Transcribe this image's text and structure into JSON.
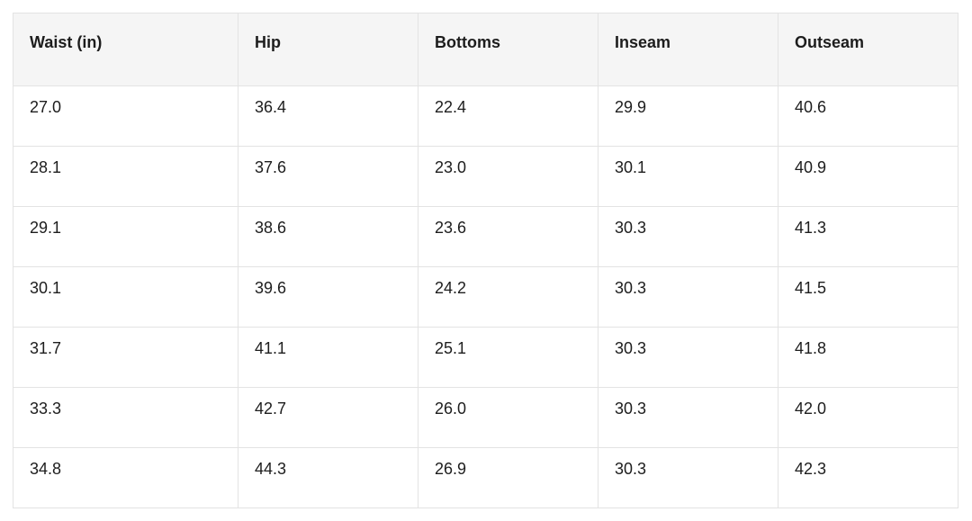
{
  "chart_data": {
    "type": "table",
    "columns": [
      "Waist (in)",
      "Hip",
      "Bottoms",
      "Inseam",
      "Outseam"
    ],
    "rows": [
      [
        "27.0",
        "36.4",
        "22.4",
        "29.9",
        "40.6"
      ],
      [
        "28.1",
        "37.6",
        "23.0",
        "30.1",
        "40.9"
      ],
      [
        "29.1",
        "38.6",
        "23.6",
        "30.3",
        "41.3"
      ],
      [
        "30.1",
        "39.6",
        "24.2",
        "30.3",
        "41.5"
      ],
      [
        "31.7",
        "41.1",
        "25.1",
        "30.3",
        "41.8"
      ],
      [
        "33.3",
        "42.7",
        "26.0",
        "30.3",
        "42.0"
      ],
      [
        "34.8",
        "44.3",
        "26.9",
        "30.3",
        "42.3"
      ]
    ]
  },
  "colors": {
    "header_background": "#f5f5f5",
    "cell_background": "#ffffff",
    "outer_border": "#d6d6d6",
    "inner_border": "#e3e3e3",
    "text": "#1d1d1d"
  }
}
